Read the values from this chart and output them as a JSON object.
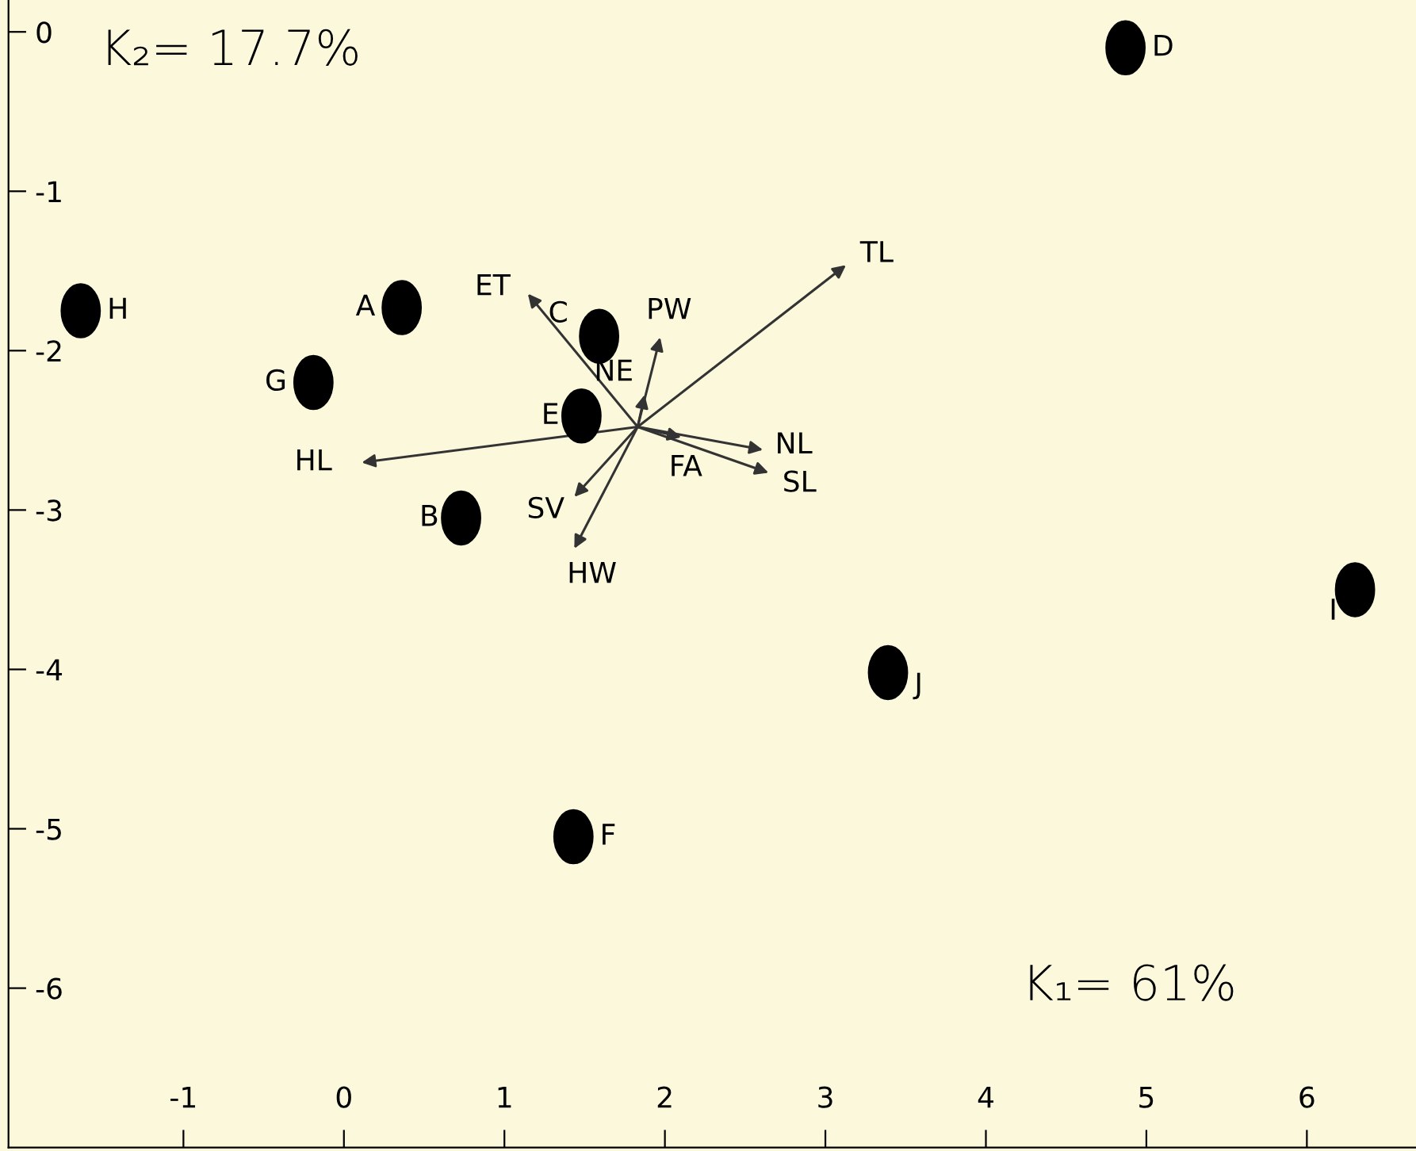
{
  "chart_data": {
    "type": "scatter",
    "xlim": [
      -2.09,
      6.68
    ],
    "ylim": [
      -7.0,
      0.2
    ],
    "xticks": [
      -1,
      0,
      1,
      2,
      3,
      4,
      5,
      6
    ],
    "yticks": [
      0,
      -1,
      -2,
      -3,
      -4,
      -5,
      -6
    ],
    "grid": false,
    "marker": "circle",
    "series": [
      {
        "color": "#000000",
        "x": [
          -1.64,
          0.36,
          -0.19,
          1.59,
          1.48,
          0.73,
          4.87,
          6.3,
          3.39,
          1.43
        ],
        "values": [
          -1.75,
          -1.73,
          -2.2,
          -1.91,
          -2.41,
          -3.05,
          -0.1,
          -3.5,
          -4.02,
          -5.05
        ]
      }
    ],
    "annotations": [
      "K₂= 17.7%",
      "K₁= 61%",
      {
        "text": "H",
        "x": -1.64,
        "y": -1.75
      },
      {
        "text": "A",
        "x": 0.36,
        "y": -1.73
      },
      {
        "text": "G",
        "x": -0.19,
        "y": -2.2
      },
      {
        "text": "C",
        "x": 1.59,
        "y": -1.91
      },
      {
        "text": "E",
        "x": 1.48,
        "y": -2.41
      },
      {
        "text": "B",
        "x": 0.73,
        "y": -3.05
      },
      {
        "text": "D",
        "x": 4.87,
        "y": -0.1
      },
      {
        "text": "I",
        "x": 6.3,
        "y": -3.5
      },
      {
        "text": "J",
        "x": 3.39,
        "y": -4.02
      },
      {
        "text": "F",
        "x": 1.43,
        "y": -5.05
      },
      "TL",
      "ET",
      "PW",
      "NE",
      "HL",
      "SV",
      "HW",
      "FA",
      "NL",
      "SL"
    ]
  }
}
